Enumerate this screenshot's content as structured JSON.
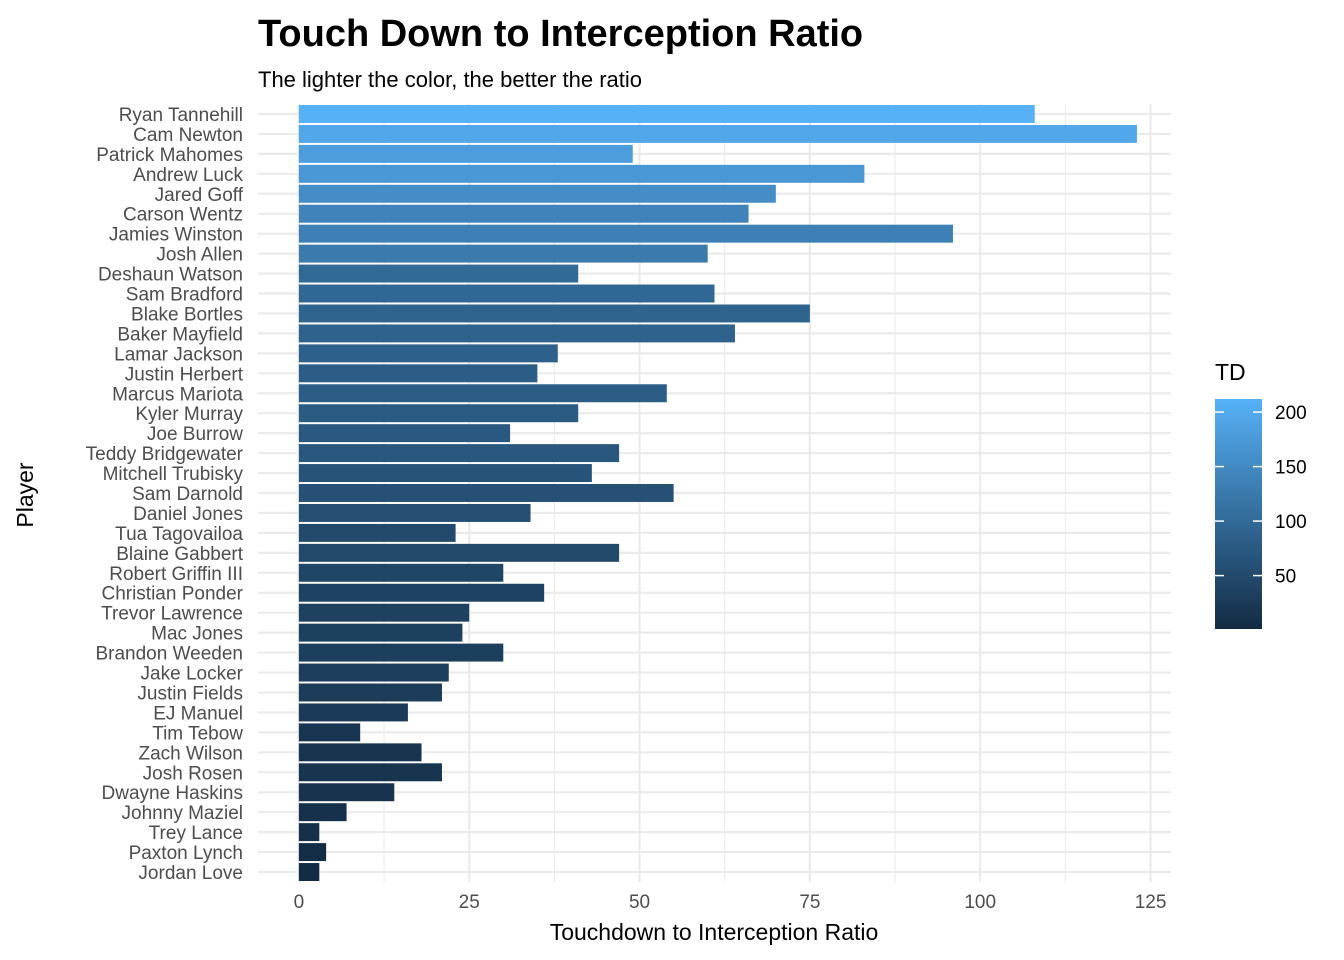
{
  "chart_data": {
    "type": "bar",
    "orientation": "horizontal",
    "title": "Touch Down to Interception Ratio",
    "subtitle": "The lighter the color, the better the ratio",
    "xlabel": "Touchdown to Interception Ratio",
    "ylabel": "Player",
    "xlim": [
      -6,
      128
    ],
    "xticks": [
      0,
      25,
      50,
      75,
      100,
      125
    ],
    "grid": true,
    "legend": {
      "title": "TD",
      "position": "right",
      "type": "colorbar",
      "range": [
        1,
        212
      ],
      "ticks": [
        50,
        100,
        150,
        200
      ],
      "color_low": "#132b43",
      "color_high": "#56b1f7"
    },
    "categories": [
      "Ryan Tannehill",
      "Cam Newton",
      "Patrick Mahomes",
      "Andrew Luck",
      "Jared Goff",
      "Carson Wentz",
      "Jamies Winston",
      "Josh Allen",
      "Deshaun Watson",
      "Sam Bradford",
      "Blake Bortles",
      "Baker Mayfield",
      "Lamar Jackson",
      "Justin Herbert",
      "Marcus Mariota",
      "Kyler Murray",
      "Joe Burrow",
      "Teddy Bridgewater",
      "Mitchell Trubisky",
      "Sam Darnold",
      "Daniel Jones",
      "Tua Tagovailoa",
      "Blaine Gabbert",
      "Robert Griffin III",
      "Christian Ponder",
      "Trevor Lawrence",
      "Mac Jones",
      "Brandon Weeden",
      "Jake Locker",
      "Justin Fields",
      "EJ Manuel",
      "Tim Tebow",
      "Zach Wilson",
      "Josh Rosen",
      "Dwayne Haskins",
      "Johnny Maziel",
      "Trey Lance",
      "Paxton Lynch",
      "Jordan Love"
    ],
    "values": [
      108,
      123,
      49,
      83,
      70,
      66,
      96,
      60,
      41,
      61,
      75,
      64,
      38,
      35,
      54,
      41,
      31,
      47,
      43,
      55,
      34,
      23,
      47,
      30,
      36,
      25,
      24,
      30,
      22,
      21,
      16,
      9,
      18,
      21,
      14,
      7,
      3,
      4,
      3
    ],
    "color_values": [
      212,
      196,
      180,
      171,
      155,
      140,
      135,
      125,
      100,
      96,
      90,
      88,
      84,
      80,
      79,
      76,
      72,
      70,
      64,
      60,
      56,
      50,
      48,
      43,
      38,
      35,
      34,
      33,
      30,
      28,
      24,
      17,
      16,
      16,
      13,
      10,
      9,
      4,
      1
    ]
  }
}
